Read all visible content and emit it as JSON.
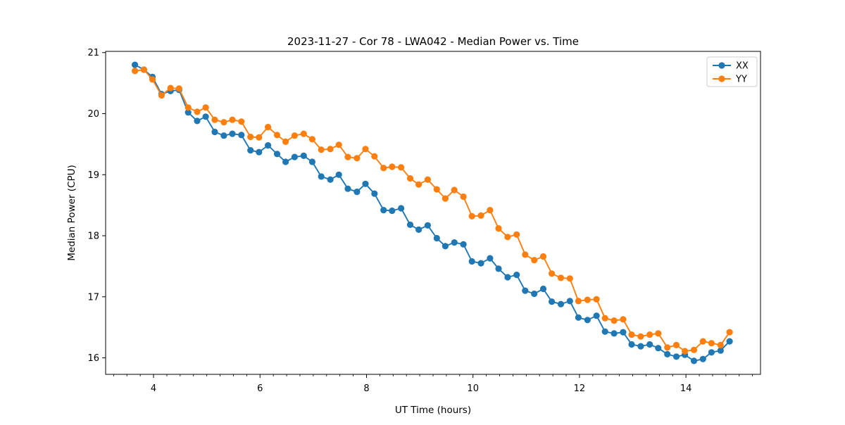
{
  "figure": {
    "background": "#ffffff"
  },
  "chart_data": {
    "type": "line",
    "title": "2023-11-27 - Cor 78 - LWA042 - Median Power vs. Time",
    "xlabel": "UT Time (hours)",
    "ylabel": "Median Power (CPU)",
    "xlim": [
      3.1,
      15.4
    ],
    "ylim": [
      15.73,
      21.02
    ],
    "xticks": [
      4,
      6,
      8,
      10,
      12,
      14
    ],
    "yticks": [
      16,
      17,
      18,
      19,
      20,
      21
    ],
    "x_minor_tick_step": 0.25,
    "grid": true,
    "grid_color": "#d9d9d9",
    "legend": {
      "position": "upper right",
      "entries": [
        "XX",
        "YY"
      ]
    },
    "x": [
      3.65,
      3.82,
      3.98,
      4.15,
      4.32,
      4.48,
      4.65,
      4.82,
      4.98,
      5.15,
      5.32,
      5.48,
      5.65,
      5.82,
      5.98,
      6.15,
      6.32,
      6.48,
      6.65,
      6.82,
      6.98,
      7.15,
      7.32,
      7.48,
      7.65,
      7.82,
      7.98,
      8.15,
      8.32,
      8.48,
      8.65,
      8.82,
      8.98,
      9.15,
      9.32,
      9.48,
      9.65,
      9.82,
      9.98,
      10.15,
      10.32,
      10.48,
      10.65,
      10.82,
      10.98,
      11.15,
      11.32,
      11.48,
      11.65,
      11.82,
      11.98,
      12.15,
      12.32,
      12.48,
      12.65,
      12.82,
      12.98,
      13.15,
      13.32,
      13.48,
      13.65,
      13.82,
      13.98,
      14.15,
      14.32,
      14.48,
      14.65,
      14.82
    ],
    "series": [
      {
        "name": "XX",
        "color": "#1f77b4",
        "marker": "circle",
        "values": [
          20.8,
          20.72,
          20.6,
          20.32,
          20.37,
          20.39,
          20.02,
          19.88,
          19.95,
          19.7,
          19.64,
          19.67,
          19.65,
          19.4,
          19.37,
          19.48,
          19.34,
          19.21,
          19.29,
          19.31,
          19.21,
          18.97,
          18.92,
          19.0,
          18.77,
          18.72,
          18.85,
          18.69,
          18.42,
          18.41,
          18.45,
          18.18,
          18.1,
          18.17,
          17.96,
          17.83,
          17.89,
          17.86,
          17.58,
          17.55,
          17.63,
          17.46,
          17.32,
          17.36,
          17.1,
          17.05,
          17.13,
          16.92,
          16.88,
          16.93,
          16.66,
          16.62,
          16.69,
          16.43,
          16.4,
          16.42,
          16.22,
          16.19,
          16.22,
          16.16,
          16.06,
          16.02,
          16.05,
          15.95,
          15.98,
          16.09,
          16.12,
          16.27
        ]
      },
      {
        "name": "YY",
        "color": "#ff7f0e",
        "marker": "circle",
        "values": [
          20.7,
          20.72,
          20.56,
          20.3,
          20.42,
          20.41,
          20.1,
          20.03,
          20.1,
          19.9,
          19.86,
          19.9,
          19.87,
          19.62,
          19.61,
          19.78,
          19.65,
          19.54,
          19.64,
          19.67,
          19.58,
          19.41,
          19.42,
          19.49,
          19.29,
          19.27,
          19.42,
          19.3,
          19.11,
          19.13,
          19.12,
          18.94,
          18.84,
          18.92,
          18.76,
          18.61,
          18.75,
          18.64,
          18.32,
          18.33,
          18.42,
          18.12,
          17.98,
          18.02,
          17.69,
          17.6,
          17.66,
          17.38,
          17.31,
          17.3,
          16.93,
          16.95,
          16.96,
          16.65,
          16.61,
          16.63,
          16.38,
          16.35,
          16.38,
          16.4,
          16.17,
          16.21,
          16.11,
          16.13,
          16.27,
          16.24,
          16.21,
          16.42
        ]
      }
    ]
  }
}
